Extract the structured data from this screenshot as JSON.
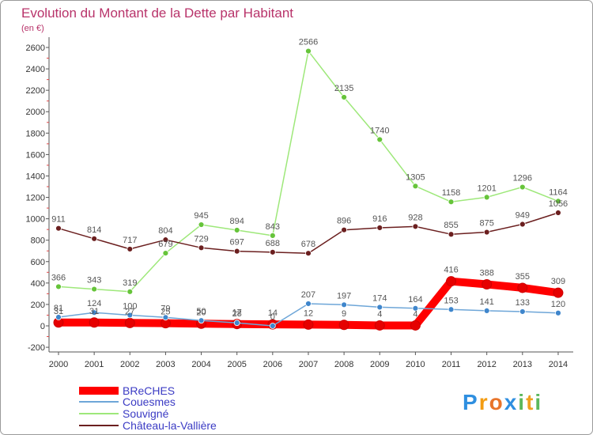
{
  "chart_data": {
    "type": "line",
    "title": "Evolution du Montant de la Dette par Habitant",
    "subtitle": "(en €)",
    "x": [
      2000,
      2001,
      2002,
      2003,
      2004,
      2005,
      2006,
      2007,
      2008,
      2009,
      2010,
      2011,
      2012,
      2013,
      2014
    ],
    "x_tick_labels": [
      "2000",
      "2001",
      "2002",
      "2003",
      "2004",
      "2005",
      "2006",
      "2007",
      "2008",
      "2009",
      "2010",
      "2011",
      "2012",
      "2013",
      "2014"
    ],
    "ylim": [
      -200,
      2600
    ],
    "y_ticks": [
      -200,
      0,
      200,
      400,
      600,
      800,
      1000,
      1200,
      1400,
      1600,
      1800,
      2000,
      2200,
      2400,
      2600
    ],
    "y_tick_labels": [
      "-200",
      "0",
      "200",
      "400",
      "600",
      "800",
      "1000",
      "1200",
      "1400",
      "1600",
      "1800",
      "2000",
      "2200",
      "2400",
      "2600"
    ],
    "grid": false,
    "legend_position": "bottom-left",
    "series": [
      {
        "name": "BReCHES",
        "color": "#ff0000",
        "marker": "#e60000",
        "values": [
          31,
          31,
          27,
          25,
          20,
          17,
          14,
          12,
          9,
          4,
          4,
          416,
          388,
          355,
          309
        ]
      },
      {
        "name": "Couesmes",
        "color": "#6ea6d8",
        "marker": "#3f86cc",
        "values": [
          81,
          124,
          100,
          79,
          50,
          28,
          0,
          207,
          197,
          174,
          164,
          153,
          141,
          133,
          120
        ]
      },
      {
        "name": "Souvigné",
        "color": "#9ee87a",
        "marker": "#66c43a",
        "values": [
          366,
          343,
          319,
          679,
          945,
          894,
          843,
          2566,
          2135,
          1740,
          1305,
          1158,
          1201,
          1296,
          1164
        ]
      },
      {
        "name": "Château-la-Vallière",
        "color": "#6b1f1f",
        "marker": "#6b1f1f",
        "values": [
          911,
          814,
          717,
          804,
          729,
          697,
          688,
          678,
          896,
          916,
          928,
          855,
          875,
          949,
          1056
        ]
      }
    ]
  },
  "logo": {
    "text": "Proxiti",
    "colors": [
      "#2f8fe0",
      "#f39c12",
      "#e8742a",
      "#2f8fe0",
      "#5cb85c",
      "#f0a020",
      "#5cb85c"
    ]
  }
}
